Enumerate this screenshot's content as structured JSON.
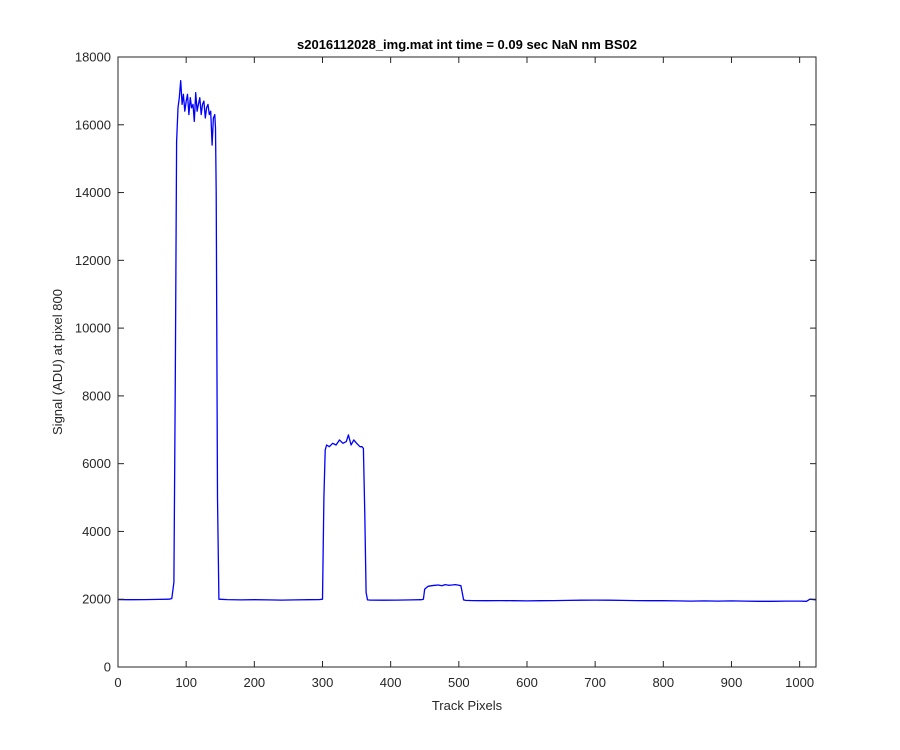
{
  "chart_data": {
    "type": "line",
    "title": "s2016112028_img.mat int time = 0.09 sec  NaN nm BS02",
    "xlabel": "Track Pixels",
    "ylabel": "Signal (ADU) at pixel 800",
    "xlim": [
      0,
      1024
    ],
    "ylim": [
      0,
      18000
    ],
    "xticks": [
      0,
      100,
      200,
      300,
      400,
      500,
      600,
      700,
      800,
      900,
      1000
    ],
    "yticks": [
      0,
      2000,
      4000,
      6000,
      8000,
      10000,
      12000,
      14000,
      16000,
      18000
    ],
    "grid": false,
    "line_color": "#0000ff",
    "series": [
      {
        "x": [
          0,
          20,
          40,
          60,
          75,
          79,
          82,
          84,
          86,
          88,
          90,
          92,
          94,
          96,
          98,
          100,
          102,
          104,
          106,
          108,
          110,
          112,
          114,
          116,
          118,
          120,
          122,
          124,
          126,
          128,
          130,
          132,
          134,
          136,
          138,
          140,
          142,
          143,
          144,
          146,
          148,
          160,
          180,
          200,
          220,
          240,
          260,
          280,
          295,
          300,
          302,
          304,
          306,
          310,
          315,
          320,
          325,
          330,
          335,
          338,
          342,
          346,
          350,
          355,
          358,
          360,
          362,
          364,
          366,
          370,
          390,
          410,
          430,
          445,
          448,
          450,
          455,
          460,
          465,
          470,
          475,
          480,
          485,
          490,
          495,
          500,
          503,
          505,
          507,
          510,
          520,
          540,
          560,
          580,
          600,
          620,
          640,
          660,
          680,
          700,
          720,
          740,
          760,
          780,
          800,
          820,
          840,
          860,
          880,
          900,
          920,
          940,
          960,
          980,
          1000,
          1010,
          1015,
          1024
        ],
        "y": [
          1990,
          1985,
          1990,
          1995,
          2000,
          2020,
          2500,
          8500,
          15500,
          16500,
          16800,
          17300,
          16600,
          16900,
          16400,
          16700,
          16900,
          16300,
          16800,
          16500,
          16600,
          16100,
          16950,
          16400,
          16600,
          16800,
          16300,
          16600,
          16700,
          16200,
          16500,
          16600,
          16300,
          16400,
          15400,
          16200,
          16300,
          15900,
          14000,
          5000,
          2000,
          1990,
          1980,
          1985,
          1980,
          1975,
          1980,
          1985,
          1990,
          2000,
          5000,
          6400,
          6550,
          6500,
          6600,
          6550,
          6700,
          6600,
          6650,
          6850,
          6550,
          6700,
          6600,
          6500,
          6500,
          6450,
          4500,
          2200,
          1980,
          1975,
          1970,
          1975,
          1980,
          1985,
          2000,
          2300,
          2380,
          2400,
          2410,
          2420,
          2400,
          2430,
          2410,
          2420,
          2430,
          2410,
          2400,
          2200,
          1980,
          1965,
          1960,
          1955,
          1960,
          1955,
          1950,
          1955,
          1960,
          1965,
          1970,
          1975,
          1970,
          1965,
          1960,
          1955,
          1955,
          1950,
          1945,
          1950,
          1945,
          1950,
          1945,
          1940,
          1940,
          1945,
          1945,
          1940,
          2000,
          1980
        ]
      }
    ]
  }
}
